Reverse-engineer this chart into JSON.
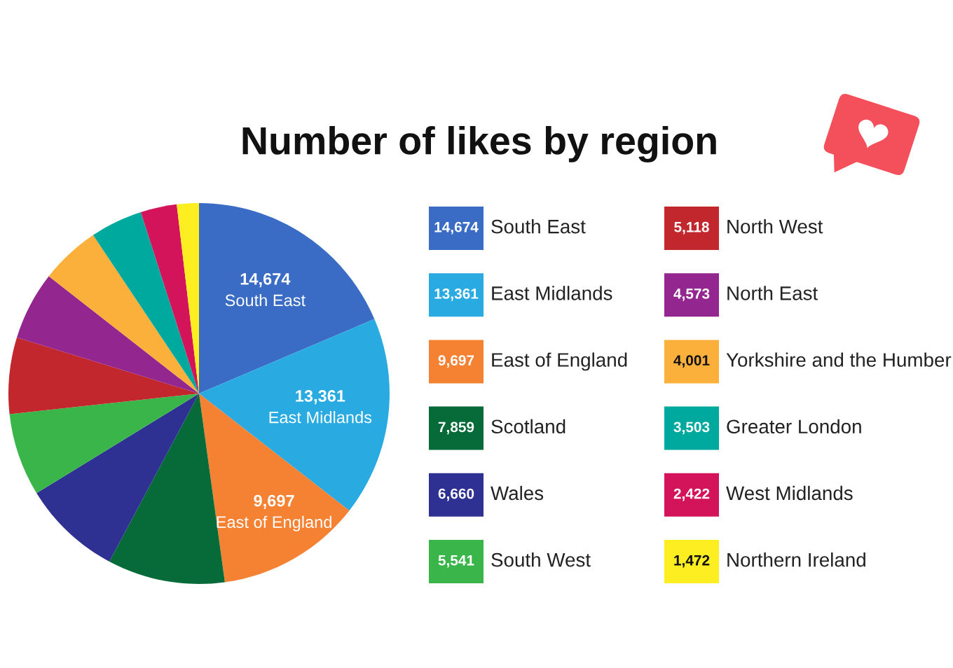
{
  "chart_data": {
    "type": "pie",
    "title": "Number of likes by region",
    "categories": [
      "South East",
      "East Midlands",
      "East of England",
      "Scotland",
      "Wales",
      "South West",
      "North West",
      "North East",
      "Yorkshire and the Humber",
      "Greater London",
      "West Midlands",
      "Northern Ireland"
    ],
    "values": [
      14674,
      13361,
      9697,
      7859,
      6660,
      5541,
      5118,
      4573,
      4001,
      3503,
      2422,
      1472
    ],
    "value_labels": [
      "14,674",
      "13,361",
      "9,697",
      "7,859",
      "6,660",
      "5,541",
      "5,118",
      "4,573",
      "4,001",
      "3,503",
      "2,422",
      "1,472"
    ],
    "colors": [
      "#3a6cc6",
      "#29abe2",
      "#f58233",
      "#066b38",
      "#2e3192",
      "#39b54a",
      "#c1272d",
      "#93278f",
      "#fbb03b",
      "#00a99d",
      "#d4145a",
      "#fcee21"
    ],
    "legend": "right"
  }
}
